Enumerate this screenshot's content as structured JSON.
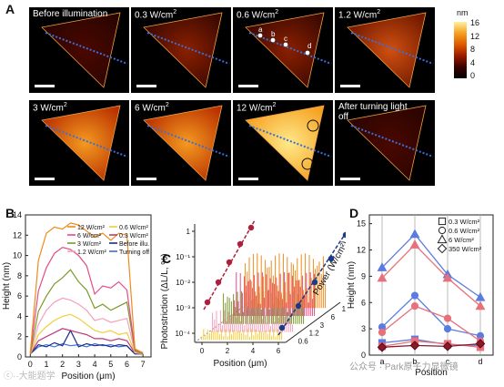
{
  "panels": {
    "A": {
      "letter": "A",
      "tiles": [
        {
          "label": "Before illumination",
          "sup": ""
        },
        {
          "label": "0.3 W/cm",
          "sup": "2"
        },
        {
          "label": "0.6 W/cm",
          "sup": "2"
        },
        {
          "label": "1.2 W/cm",
          "sup": "2"
        },
        {
          "label": "3 W/cm",
          "sup": "2"
        },
        {
          "label": "6 W/cm",
          "sup": "2"
        },
        {
          "label": "12 W/cm",
          "sup": "2"
        },
        {
          "label": "After turning light off",
          "sup": ""
        }
      ],
      "point_labels": [
        "a",
        "b",
        "c",
        "d"
      ],
      "colorbar": {
        "unit": "nm",
        "ticks": [
          "16",
          "12",
          "8",
          "4",
          "0"
        ],
        "range": [
          0,
          16
        ]
      },
      "colors": {
        "line": "#3a6fd8",
        "low": "#2a0000",
        "mid": "#c43a00",
        "high": "#ffe27a"
      }
    },
    "B": {
      "letter": "B"
    },
    "C": {
      "letter": "C"
    },
    "D": {
      "letter": "D"
    }
  },
  "watermark": {
    "left": "ⓒ··大能题学",
    "right": "公众号 · Park原子力显微镜"
  },
  "chart_data": [
    {
      "id": "B",
      "type": "line",
      "xlabel": "Position (μm)",
      "ylabel": "Height (nm)",
      "xlim": [
        -0.3,
        7.5
      ],
      "ylim": [
        0,
        14
      ],
      "xticks": [
        0,
        1,
        2,
        3,
        4,
        5,
        6,
        7
      ],
      "yticks": [
        0,
        2,
        4,
        6,
        8,
        10,
        12,
        14
      ],
      "legend": [
        {
          "name": "12 W/cm²",
          "color": "#f08a1c"
        },
        {
          "name": "6 W/cm²",
          "color": "#e24d88"
        },
        {
          "name": "3 W/cm²",
          "color": "#7a9a2a"
        },
        {
          "name": "1.2 W/cm²",
          "color": "#f4a0bc"
        },
        {
          "name": "0.6 W/cm²",
          "color": "#f2cc3a"
        },
        {
          "name": "0.3 W/cm²",
          "color": "#c0397a"
        },
        {
          "name": "Before illu.",
          "color": "#1a2a8a"
        },
        {
          "name": "Turning off",
          "color": "#3d6ed8"
        }
      ],
      "series": [
        {
          "name": "12 W/cm²",
          "color": "#f08a1c",
          "x": [
            0,
            0.5,
            1,
            1.5,
            2,
            2.5,
            3,
            3.5,
            4,
            4.5,
            5,
            5.5,
            6,
            6.5,
            7
          ],
          "y": [
            0.4,
            9.5,
            12.2,
            12.8,
            12.6,
            13.2,
            13.0,
            12.4,
            11.8,
            12.2,
            11.5,
            12.2,
            12.0,
            0.8,
            0.4
          ]
        },
        {
          "name": "6 W/cm²",
          "color": "#e24d88",
          "x": [
            0,
            0.5,
            1,
            1.5,
            2,
            2.5,
            3,
            3.5,
            4,
            4.5,
            5,
            5.5,
            6,
            6.5,
            7
          ],
          "y": [
            0.4,
            6.5,
            8.8,
            10.2,
            10.8,
            10.6,
            10.0,
            9.0,
            6.2,
            7.0,
            6.8,
            7.4,
            6.6,
            0.7,
            0.4
          ]
        },
        {
          "name": "3 W/cm²",
          "color": "#7a9a2a",
          "x": [
            0,
            0.5,
            1,
            1.5,
            2,
            2.5,
            3,
            3.5,
            4,
            4.5,
            5,
            5.5,
            6,
            6.5,
            7
          ],
          "y": [
            0.3,
            4.5,
            6.0,
            7.2,
            7.8,
            8.6,
            7.4,
            6.6,
            4.8,
            5.2,
            4.6,
            5.0,
            5.4,
            0.6,
            0.3
          ]
        },
        {
          "name": "1.2 W/cm²",
          "color": "#f4a0bc",
          "x": [
            0,
            0.5,
            1,
            1.5,
            2,
            2.5,
            3,
            3.5,
            4,
            4.5,
            5,
            5.5,
            6,
            6.5,
            7
          ],
          "y": [
            0.3,
            3.2,
            4.6,
            5.4,
            5.8,
            5.6,
            5.2,
            4.6,
            3.6,
            3.8,
            3.4,
            3.6,
            3.8,
            0.5,
            0.3
          ]
        },
        {
          "name": "0.6 W/cm²",
          "color": "#f2cc3a",
          "x": [
            0,
            0.5,
            1,
            1.5,
            2,
            2.5,
            3,
            3.5,
            4,
            4.5,
            5,
            5.5,
            6,
            6.5,
            7
          ],
          "y": [
            0.3,
            2.2,
            3.0,
            3.6,
            4.0,
            4.2,
            3.8,
            3.2,
            2.6,
            2.4,
            2.6,
            2.2,
            2.4,
            0.4,
            0.3
          ]
        },
        {
          "name": "0.3 W/cm²",
          "color": "#c0397a",
          "x": [
            0,
            0.5,
            1,
            1.5,
            2,
            2.5,
            3,
            3.5,
            4,
            4.5,
            5,
            5.5,
            6,
            6.5,
            7
          ],
          "y": [
            0.3,
            1.6,
            2.0,
            2.4,
            2.8,
            2.6,
            2.4,
            2.2,
            1.8,
            1.8,
            1.6,
            1.8,
            1.6,
            0.4,
            0.3
          ]
        },
        {
          "name": "Before illu.",
          "color": "#1a2a8a",
          "x": [
            0,
            0.5,
            1,
            1.5,
            2,
            2.5,
            3,
            3.5,
            4,
            4.5,
            5,
            5.5,
            6,
            6.5,
            7
          ],
          "y": [
            0.3,
            1.2,
            1.0,
            1.4,
            1.1,
            2.6,
            1.0,
            1.3,
            1.1,
            1.2,
            1.0,
            1.2,
            1.1,
            0.3,
            0.3
          ]
        },
        {
          "name": "Turning off",
          "color": "#3d6ed8",
          "x": [
            0,
            0.5,
            1,
            1.5,
            2,
            2.5,
            3,
            3.5,
            4,
            4.5,
            5,
            5.5,
            6,
            6.5,
            7
          ],
          "y": [
            0.3,
            1.0,
            1.2,
            1.0,
            1.3,
            1.1,
            1.2,
            1.0,
            1.3,
            1.1,
            1.2,
            1.0,
            1.1,
            0.3,
            0.3
          ]
        }
      ]
    },
    {
      "id": "C",
      "type": "line",
      "xlabel": "Position (μm)",
      "ylabel": "Photostriction (ΔL/L, %)",
      "zlabel": "Power (W/cm²)",
      "xticks": [
        "0",
        "2",
        "4",
        "6"
      ],
      "yticks": [
        "1",
        "10⁻¹",
        "10⁻²",
        "10⁻³",
        "10⁻⁴"
      ],
      "zticks": [
        "0.6",
        "1.2",
        "3",
        "6",
        "12"
      ],
      "fit_colors": {
        "red": "#b01f3a",
        "blue": "#1a3a8a"
      },
      "slice_colors": [
        "#f2cc3a",
        "#f4a0bc",
        "#7a9a2a",
        "#e24d88",
        "#f08a1c"
      ]
    },
    {
      "id": "D",
      "type": "line",
      "xlabel": "Position",
      "ylabel": "Height (nm)",
      "categories": [
        "a",
        "b",
        "c",
        "d"
      ],
      "ylim": [
        0,
        16
      ],
      "yticks": [
        0,
        3,
        6,
        9,
        12,
        15
      ],
      "legend": [
        {
          "name": "0.3 W/cm²",
          "marker": "square"
        },
        {
          "name": "0.6 W/cm²",
          "marker": "circle"
        },
        {
          "name": "6 W/cm²",
          "marker": "triangle"
        },
        {
          "name": "350 W/cm²",
          "marker": "diamond"
        }
      ],
      "series": [
        {
          "name": "0.3 W/cm²",
          "marker": "square",
          "color": "#5b7be0",
          "values": [
            1.4,
            1.8,
            1.2,
            1.1
          ]
        },
        {
          "name": "0.3 W/cm² (red)",
          "marker": "square",
          "color": "#e8707a",
          "values": [
            1.0,
            1.6,
            1.3,
            0.9
          ]
        },
        {
          "name": "0.6 W/cm²",
          "marker": "circle",
          "color": "#5b7be0",
          "values": [
            3.2,
            6.8,
            3.0,
            2.2
          ]
        },
        {
          "name": "0.6 W/cm² (red)",
          "marker": "circle",
          "color": "#e8707a",
          "values": [
            2.6,
            5.6,
            4.2,
            1.6
          ]
        },
        {
          "name": "6 W/cm²",
          "marker": "triangle",
          "color": "#5b7be0",
          "values": [
            10.0,
            13.8,
            9.2,
            6.6
          ]
        },
        {
          "name": "6 W/cm² (red)",
          "marker": "triangle",
          "color": "#e8707a",
          "values": [
            8.8,
            12.6,
            8.8,
            5.6
          ]
        },
        {
          "name": "350 W/cm²",
          "marker": "diamond",
          "color": "#8a1a2a",
          "values": [
            0.9,
            1.1,
            1.0,
            1.3
          ]
        }
      ]
    }
  ]
}
